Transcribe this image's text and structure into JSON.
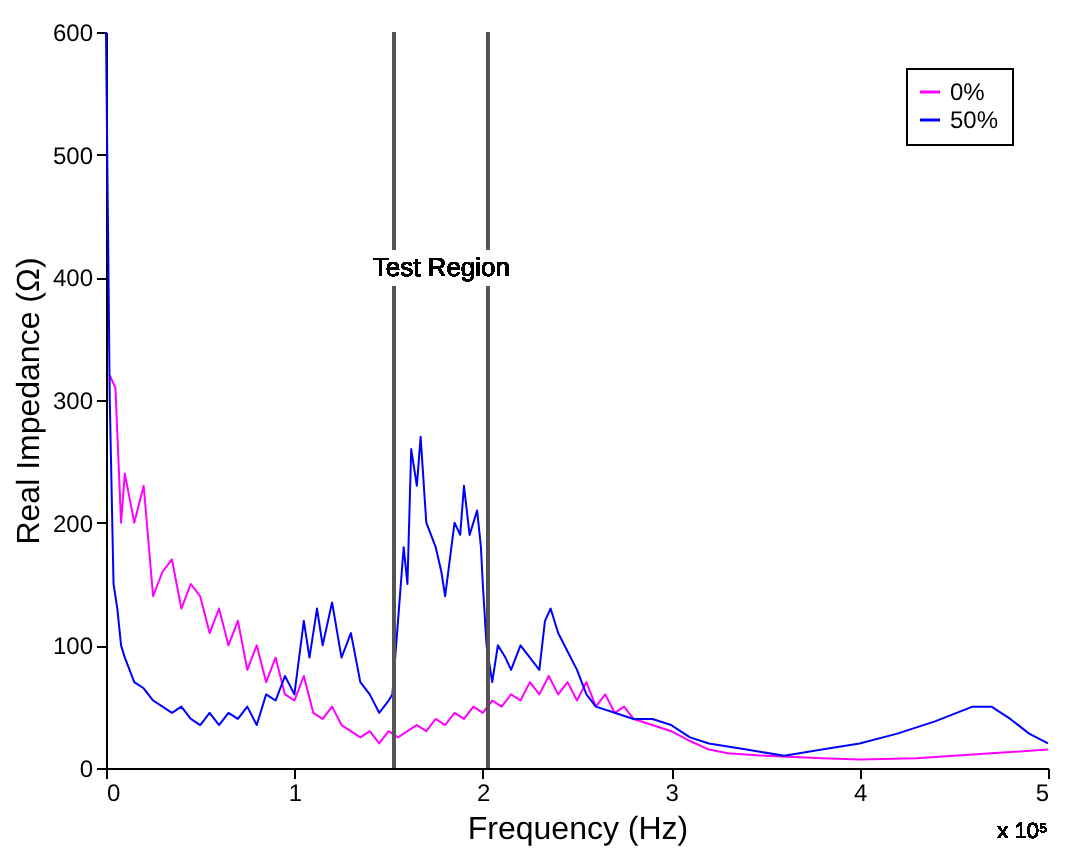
{
  "chart_data": {
    "type": "line",
    "xlabel": "Frequency (Hz)",
    "ylabel": "Real Impedance (Ω)",
    "xlim": [
      0,
      5
    ],
    "xticks": [
      {
        "value": 0,
        "label": "0"
      },
      {
        "value": 1,
        "label": "1"
      },
      {
        "value": 2,
        "label": "2"
      },
      {
        "value": 3,
        "label": "3"
      },
      {
        "value": 4,
        "label": "4"
      },
      {
        "value": 5,
        "label": "5"
      }
    ],
    "ylim": [
      0,
      600
    ],
    "yticks": [
      0,
      100,
      200,
      300,
      400,
      500,
      600
    ],
    "grid": false,
    "legend": "top right",
    "annotations": [
      "x 10⁵",
      "Test Region"
    ],
    "ref_lines": [
      {
        "axis": "x",
        "value": 1.53,
        "color": "#555555"
      },
      {
        "axis": "x",
        "value": 2.03,
        "color": "#555555"
      }
    ],
    "series": [
      {
        "name": "0%",
        "color": "#ff00ff",
        "x": [
          0.02,
          0.05,
          0.08,
          0.1,
          0.15,
          0.2,
          0.25,
          0.3,
          0.35,
          0.4,
          0.45,
          0.5,
          0.55,
          0.6,
          0.65,
          0.7,
          0.75,
          0.8,
          0.85,
          0.9,
          0.95,
          1.0,
          1.05,
          1.1,
          1.15,
          1.2,
          1.25,
          1.3,
          1.35,
          1.4,
          1.45,
          1.5,
          1.55,
          1.6,
          1.65,
          1.7,
          1.75,
          1.8,
          1.85,
          1.9,
          1.95,
          2.0,
          2.05,
          2.1,
          2.15,
          2.2,
          2.25,
          2.3,
          2.35,
          2.4,
          2.45,
          2.5,
          2.55,
          2.6,
          2.65,
          2.7,
          2.75,
          2.8,
          2.9,
          3.0,
          3.1,
          3.2,
          3.3,
          3.5,
          3.8,
          4.0,
          4.3,
          4.6,
          5.0
        ],
        "values": [
          320,
          310,
          200,
          240,
          200,
          230,
          140,
          160,
          170,
          130,
          150,
          140,
          110,
          130,
          100,
          120,
          80,
          100,
          70,
          90,
          60,
          55,
          75,
          45,
          40,
          50,
          35,
          30,
          25,
          30,
          20,
          30,
          25,
          30,
          35,
          30,
          40,
          35,
          45,
          40,
          50,
          45,
          55,
          50,
          60,
          55,
          70,
          60,
          75,
          60,
          70,
          55,
          70,
          50,
          60,
          45,
          50,
          40,
          35,
          30,
          22,
          15,
          12,
          10,
          8,
          7,
          8,
          11,
          15
        ]
      },
      {
        "name": "50%",
        "color": "#0000ff",
        "x": [
          0,
          0.02,
          0.04,
          0.06,
          0.08,
          0.1,
          0.15,
          0.2,
          0.25,
          0.3,
          0.35,
          0.4,
          0.45,
          0.5,
          0.55,
          0.6,
          0.65,
          0.7,
          0.75,
          0.8,
          0.85,
          0.9,
          0.95,
          1.0,
          1.05,
          1.08,
          1.12,
          1.15,
          1.2,
          1.25,
          1.3,
          1.35,
          1.4,
          1.45,
          1.5,
          1.52,
          1.55,
          1.58,
          1.6,
          1.62,
          1.65,
          1.67,
          1.7,
          1.75,
          1.78,
          1.8,
          1.85,
          1.88,
          1.9,
          1.93,
          1.97,
          1.99,
          2.0,
          2.02,
          2.05,
          2.08,
          2.12,
          2.15,
          2.2,
          2.25,
          2.3,
          2.33,
          2.36,
          2.4,
          2.45,
          2.5,
          2.55,
          2.6,
          2.7,
          2.8,
          2.9,
          3.0,
          3.1,
          3.2,
          3.4,
          3.6,
          3.8,
          4.0,
          4.2,
          4.4,
          4.6,
          4.7,
          4.8,
          4.9,
          5.0
        ],
        "values": [
          600,
          300,
          150,
          130,
          100,
          90,
          70,
          65,
          55,
          50,
          45,
          50,
          40,
          35,
          45,
          35,
          45,
          40,
          50,
          35,
          60,
          55,
          75,
          60,
          120,
          90,
          130,
          100,
          135,
          90,
          110,
          70,
          60,
          45,
          55,
          60,
          120,
          180,
          150,
          260,
          230,
          270,
          200,
          180,
          160,
          140,
          200,
          190,
          230,
          190,
          210,
          180,
          150,
          100,
          70,
          100,
          90,
          80,
          100,
          90,
          80,
          120,
          130,
          110,
          95,
          80,
          60,
          50,
          45,
          40,
          40,
          35,
          25,
          20,
          15,
          10,
          15,
          20,
          28,
          38,
          50,
          50,
          40,
          28,
          20
        ]
      }
    ]
  }
}
